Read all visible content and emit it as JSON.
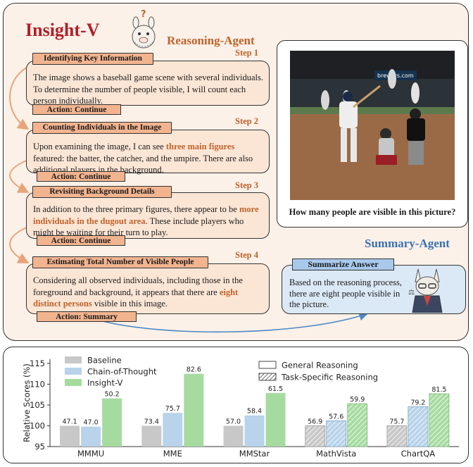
{
  "header": {
    "title": "Insight-V",
    "reasoning_agent": "Reasoning-Agent",
    "summary_agent": "Summary-Agent"
  },
  "steps": [
    {
      "step_label": "Step 1",
      "heading": "Identifying Key Information",
      "text_before": "The image shows a baseball game scene with several individuals. To determine the number of people visible, I will count each person individually.",
      "highlight": "",
      "text_after": "",
      "action": "Action: Continue"
    },
    {
      "step_label": "Step 2",
      "heading": "Counting Individuals in the Image",
      "text_before": "Upon examining the image, I can see ",
      "highlight": "three main figures",
      "text_after": " featured: the batter, the catcher, and the umpire. There are also additional players in the background.",
      "action": "Action: Continue"
    },
    {
      "step_label": "Step 3",
      "heading": "Revisiting Background Details",
      "text_before": "In addition to the three primary figures, there appear to be ",
      "highlight": "more individuals in the dugout area",
      "text_after": ". These include players who might be waiting for their turn to play.",
      "action": "Action: Continue"
    },
    {
      "step_label": "Step 4",
      "heading": "Estimating Total Number of Visible People",
      "text_before": "Considering all observed individuals, including those in the foreground and background, it appears that there are ",
      "highlight": "eight distinct persons",
      "text_after": " visible in this image.",
      "action": "Action: Summary"
    }
  ],
  "image_panel": {
    "banner_text": "brewers.com",
    "question": "How many people are visible in this picture?"
  },
  "summary": {
    "heading": "Summarize Answer",
    "text": "Based on the reasoning process, there are eight people visible in the picture."
  },
  "colors": {
    "accent_red": "#b0202a",
    "accent_orange": "#c0622a",
    "baseline": "#c8c8c8",
    "chain_of_thought": "#b8d3ea",
    "insight_v": "#a6dba0"
  },
  "chart_data": {
    "type": "bar",
    "ylabel": "Relative Scores (%)",
    "ylim": [
      95,
      116
    ],
    "yticks": [
      "95",
      "100",
      "105",
      "110",
      "115"
    ],
    "categories": [
      "MMMU",
      "MME",
      "MMStar",
      "MathVista",
      "ChartQA"
    ],
    "category_type": [
      "general",
      "general",
      "general",
      "task",
      "task"
    ],
    "series": [
      {
        "name": "Baseline",
        "values": [
          100,
          100,
          100,
          100,
          100
        ],
        "labels": [
          "47.1",
          "73.4",
          "57.0",
          "56.9",
          "75.7"
        ]
      },
      {
        "name": "Chain-of-Thought",
        "values": [
          99.8,
          103.1,
          102.5,
          101.2,
          104.6
        ],
        "labels": [
          "47.0",
          "75.7",
          "58.4",
          "57.6",
          "79.2"
        ]
      },
      {
        "name": "Insight-V",
        "values": [
          106.6,
          112.5,
          107.9,
          105.3,
          107.7
        ],
        "labels": [
          "50.2",
          "82.6",
          "61.5",
          "59.9",
          "81.5"
        ]
      }
    ],
    "style_legend": [
      "General Reasoning",
      "Task-Specific Reasoning"
    ]
  }
}
